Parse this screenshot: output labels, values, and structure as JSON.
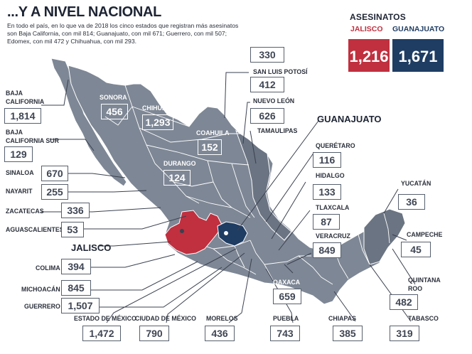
{
  "header": {
    "title": "...Y A NIVEL NACIONAL",
    "intro": "En todo el país, en lo que va de 2018 los cinco estados que registran más asesinatos son Baja California, con mil 814; Guanajuato, con mil 671; Guerrero, con mil 507; Edomex, con mil 472 y Chihuahua, con mil 293."
  },
  "comparison": {
    "heading": "ASESINATOS",
    "jalisco_label": "JALISCO",
    "guanajuato_label": "GUANAJUATO",
    "jalisco_value": "1,216",
    "guanajuato_value": "1,671",
    "jalisco_color": "#c0303f",
    "guanajuato_color": "#1f3d63"
  },
  "states": {
    "baja_california": {
      "label": "BAJA\nCALIFORNIA",
      "value": "1,814"
    },
    "baja_california_sur": {
      "label": "BAJA\nCALIFORNIA SUR",
      "value": "129"
    },
    "sonora": {
      "label": "SONORA",
      "value": "456"
    },
    "chihuahua": {
      "label": "CHIHUAHUA",
      "value": "1,293"
    },
    "coahuila": {
      "label": "COAHUILA",
      "value": "152"
    },
    "durango": {
      "label": "DURANGO",
      "value": "124"
    },
    "sinaloa": {
      "label": "SINALOA",
      "value": "670"
    },
    "nayarit": {
      "label": "NAYARIT",
      "value": "255"
    },
    "zacatecas": {
      "label": "ZACATECAS",
      "value": "336"
    },
    "aguascalientes": {
      "label": "AGUASCALIENTES",
      "value": "53"
    },
    "jalisco": {
      "label": "JALISCO"
    },
    "colima": {
      "label": "COLIMA",
      "value": "394"
    },
    "michoacan": {
      "label": "MICHOACÁN",
      "value": "845"
    },
    "guerrero": {
      "label": "GUERRERO",
      "value": "1,507"
    },
    "estado_mexico": {
      "label": "ESTADO DE MÉXICO",
      "value": "1,472"
    },
    "cdmx": {
      "label": "CIUDAD DE MÉXICO",
      "value": "790"
    },
    "morelos": {
      "label": "MORELOS",
      "value": "436"
    },
    "puebla": {
      "label": "PUEBLA",
      "value": "743"
    },
    "oaxaca": {
      "label": "OAXACA",
      "value": "659"
    },
    "chiapas": {
      "label": "CHIAPAS",
      "value": "385"
    },
    "tabasco": {
      "label": "TABASCO",
      "value": "319"
    },
    "quintana_roo": {
      "label": "QUINTANA\nROO",
      "value": "482"
    },
    "campeche": {
      "label": "CAMPECHE",
      "value": "45"
    },
    "yucatan": {
      "label": "YUCATÁN",
      "value": "36"
    },
    "veracruz": {
      "label": "VERACRUZ",
      "value": "849"
    },
    "tlaxcala": {
      "label": "TLAXCALA",
      "value": "87"
    },
    "hidalgo": {
      "label": "HIDALGO",
      "value": "133"
    },
    "queretaro": {
      "label": "QUERÉTARO",
      "value": "116"
    },
    "guanajuato": {
      "label": "GUANAJUATO"
    },
    "tamaulipas": {
      "label": "TAMAULIPAS",
      "value": "330"
    },
    "san_luis_potosi": {
      "label": "SAN LUIS POTOSÍ",
      "value": "412"
    },
    "nuevo_leon": {
      "label": "NUEVO LEÓN",
      "value": "626"
    }
  },
  "colors": {
    "map_fill": "#7e8795",
    "map_dark": "#5e6877",
    "jalisco": "#c0303f",
    "guanajuato": "#1f3d63",
    "leader": "#3a4150"
  }
}
